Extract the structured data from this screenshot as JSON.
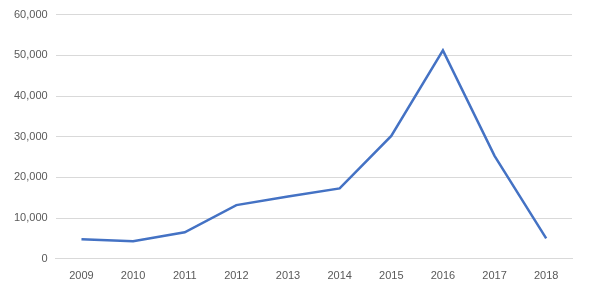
{
  "chart_data": {
    "type": "line",
    "categories": [
      "2009",
      "2010",
      "2011",
      "2012",
      "2013",
      "2014",
      "2015",
      "2016",
      "2017",
      "2018"
    ],
    "values": [
      4800,
      4300,
      6500,
      13200,
      15300,
      17300,
      30200,
      51200,
      25300,
      5000
    ],
    "color": "#4472c4",
    "ylim": [
      0,
      60000
    ],
    "yticks": [
      0,
      {
        "value": 10000,
        "label": "10,000"
      },
      {
        "value": 20000,
        "label": "20,000"
      },
      {
        "value": 30000,
        "label": "30,000"
      },
      {
        "value": 40000,
        "label": "40,000"
      },
      {
        "value": 50000,
        "label": "50,000"
      },
      {
        "value": 60000,
        "label": "60,000"
      }
    ],
    "grid": true
  }
}
